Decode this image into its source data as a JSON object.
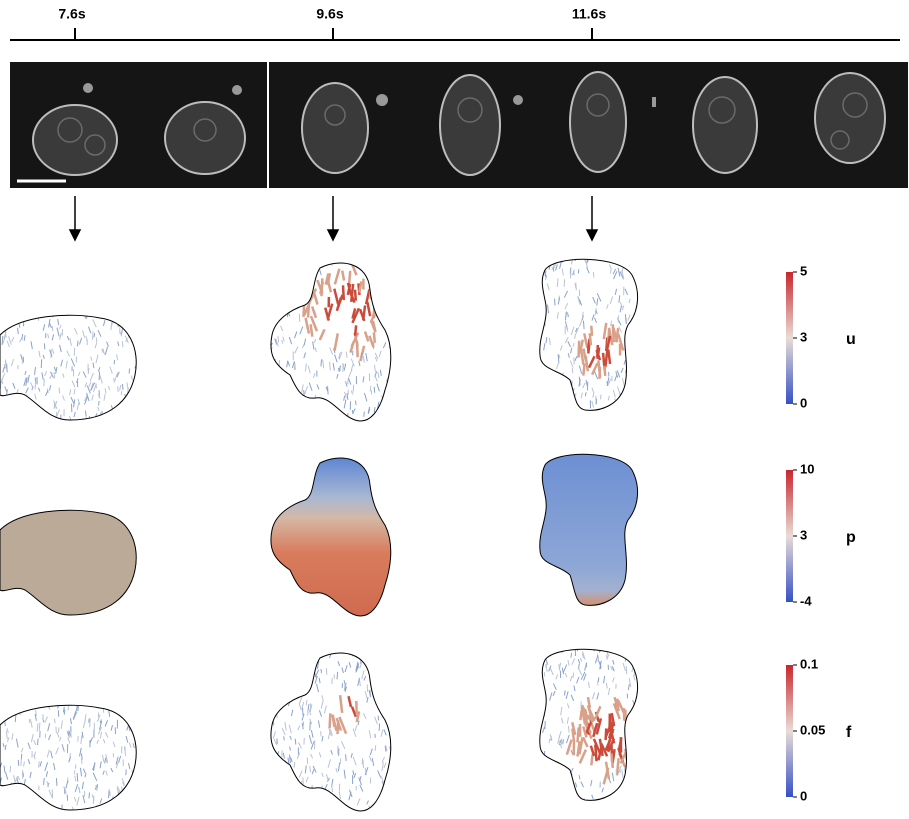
{
  "timeline": {
    "labels": [
      "7.6s",
      "9.6s",
      "11.6s"
    ]
  },
  "colorbars": [
    {
      "name": "u",
      "ticks": [
        5,
        3,
        0
      ]
    },
    {
      "name": "p",
      "ticks": [
        10,
        3,
        -4
      ]
    },
    {
      "name": "f",
      "ticks": [
        0.1,
        0.05,
        0
      ]
    }
  ]
}
